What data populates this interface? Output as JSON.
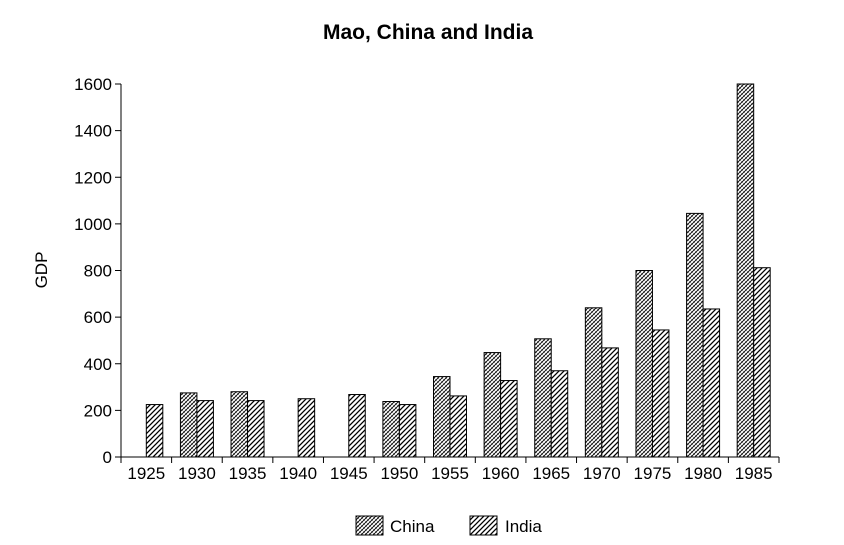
{
  "chart_data": {
    "type": "bar",
    "title": "Mao, China and India",
    "xlabel": "",
    "ylabel": "GDP",
    "ylim": [
      0,
      1600
    ],
    "yticks": [
      "0",
      "200",
      "400",
      "600",
      "800",
      "1000",
      "1200",
      "1400",
      "1600"
    ],
    "categories": [
      "1925",
      "1930",
      "1935",
      "1940",
      "1945",
      "1950",
      "1955",
      "1960",
      "1965",
      "1970",
      "1975",
      "1980",
      "1985"
    ],
    "series": [
      {
        "name": "China",
        "pattern": "crosshatch",
        "values": [
          null,
          275,
          280,
          null,
          null,
          238,
          345,
          448,
          507,
          640,
          800,
          1045,
          1600
        ]
      },
      {
        "name": "India",
        "pattern": "diagonal",
        "values": [
          225,
          242,
          242,
          250,
          268,
          225,
          262,
          328,
          370,
          468,
          545,
          635,
          812
        ]
      }
    ],
    "legend_position": "bottom-center",
    "grid": false
  }
}
